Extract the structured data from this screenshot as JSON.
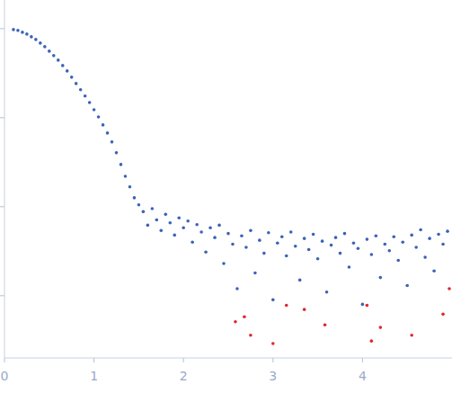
{
  "chart_data": {
    "type": "scatter",
    "log": "y",
    "tick_labels": "x",
    "xlim": [
      0,
      5
    ],
    "ylim": [
      0.0002,
      2.1
    ],
    "xticks": [
      0,
      1,
      2,
      3,
      4
    ],
    "yticks": [
      1,
      0.1,
      0.01,
      0.001
    ],
    "series": [
      {
        "color": "#3a63b8",
        "marker": "circle",
        "x": [
          0.1,
          0.15,
          0.2,
          0.25,
          0.3,
          0.35,
          0.4,
          0.45,
          0.5,
          0.55,
          0.6,
          0.65,
          0.7,
          0.75,
          0.8,
          0.85,
          0.9,
          0.95,
          1.0,
          1.05,
          1.1,
          1.15,
          1.2,
          1.25,
          1.3,
          1.35,
          1.4,
          1.45,
          1.5,
          1.55,
          1.6,
          1.65,
          1.7,
          1.75,
          1.8,
          1.85,
          1.9,
          1.95,
          2.0,
          2.05,
          2.1,
          2.15,
          2.2,
          2.25,
          2.3,
          2.35,
          2.4,
          2.45,
          2.5,
          2.55,
          2.6,
          2.65,
          2.7,
          2.75,
          2.8,
          2.85,
          2.9,
          2.95,
          3.0,
          3.05,
          3.1,
          3.15,
          3.2,
          3.25,
          3.3,
          3.35,
          3.4,
          3.45,
          3.5,
          3.55,
          3.6,
          3.65,
          3.7,
          3.75,
          3.8,
          3.85,
          3.9,
          3.95,
          4.0,
          4.05,
          4.1,
          4.15,
          4.2,
          4.25,
          4.3,
          4.35,
          4.4,
          4.45,
          4.5,
          4.55,
          4.6,
          4.65,
          4.7,
          4.75,
          4.8,
          4.85,
          4.9,
          4.95
        ],
        "values": [
          0.977,
          0.955,
          0.911,
          0.87,
          0.811,
          0.756,
          0.689,
          0.628,
          0.559,
          0.498,
          0.443,
          0.385,
          0.335,
          0.285,
          0.242,
          0.206,
          0.175,
          0.148,
          0.123,
          0.102,
          0.083,
          0.0673,
          0.0534,
          0.0404,
          0.0298,
          0.022,
          0.0167,
          0.0126,
          0.0105,
          0.0088,
          0.0062,
          0.0095,
          0.0071,
          0.0054,
          0.0082,
          0.0066,
          0.0048,
          0.0075,
          0.0058,
          0.0069,
          0.004,
          0.0063,
          0.0052,
          0.0031,
          0.0058,
          0.0045,
          0.0062,
          0.0023,
          0.005,
          0.0038,
          0.0012,
          0.0047,
          0.0035,
          0.0054,
          0.0018,
          0.0042,
          0.003,
          0.0051,
          0.0009,
          0.0039,
          0.0046,
          0.0028,
          0.0052,
          0.0036,
          0.0015,
          0.0044,
          0.0033,
          0.0049,
          0.0026,
          0.0041,
          0.0011,
          0.0037,
          0.0045,
          0.003,
          0.005,
          0.0021,
          0.0039,
          0.0034,
          0.0008,
          0.0043,
          0.0029,
          0.0047,
          0.0016,
          0.0038,
          0.0032,
          0.0046,
          0.0025,
          0.004,
          0.0013,
          0.0048,
          0.0035,
          0.0055,
          0.0027,
          0.0044,
          0.0019,
          0.0049,
          0.0038,
          0.0053
        ]
      },
      {
        "color": "#e0262b",
        "marker": "circle",
        "x": [
          2.58,
          2.68,
          2.75,
          3.0,
          3.15,
          3.35,
          3.58,
          4.05,
          4.1,
          4.2,
          4.55,
          4.9,
          4.97
        ],
        "values": [
          0.00051,
          0.00058,
          0.00036,
          0.00029,
          0.00078,
          0.0007,
          0.00047,
          0.00078,
          0.00031,
          0.00044,
          0.00036,
          0.00062,
          0.0012
        ]
      }
    ]
  }
}
